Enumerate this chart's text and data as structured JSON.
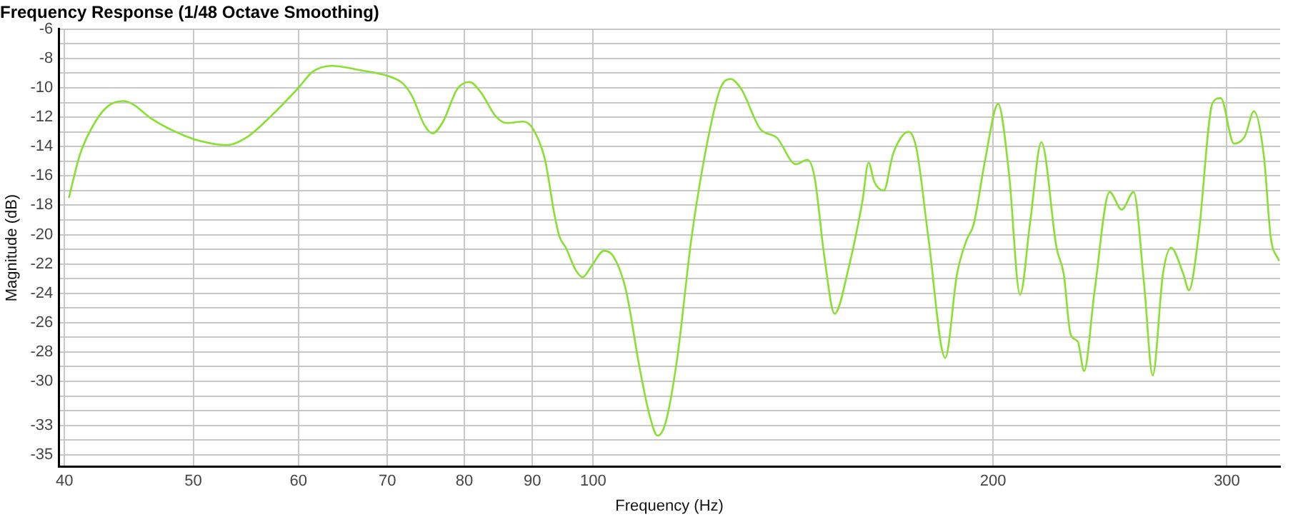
{
  "chart_data": {
    "type": "line",
    "title": "Frequency Response (1/48 Octave Smoothing)",
    "xlabel": "Frequency (Hz)",
    "ylabel": "Magnitude (dB)",
    "log": "x",
    "grid": true,
    "marker": "none",
    "line_style": "solid",
    "legend": false,
    "xlim": [
      39.6,
      329
    ],
    "xticks": [
      40,
      50,
      60,
      70,
      80,
      90,
      100,
      200,
      300
    ],
    "ylim": [
      -35.8,
      -6
    ],
    "yticks": [
      -6,
      {
        "value": -7,
        "label": null
      },
      -8,
      {
        "value": -9,
        "label": null
      },
      -10,
      {
        "value": -11,
        "label": null
      },
      -12,
      {
        "value": -13,
        "label": null
      },
      -14,
      {
        "value": -15,
        "label": null
      },
      -16,
      {
        "value": -17,
        "label": null
      },
      -18,
      {
        "value": -19,
        "label": null
      },
      -20,
      {
        "value": -21,
        "label": null
      },
      -22,
      {
        "value": -23,
        "label": null
      },
      -24,
      {
        "value": -25,
        "label": null
      },
      -26,
      {
        "value": -27,
        "label": null
      },
      -28,
      {
        "value": -29,
        "label": null
      },
      -30,
      {
        "value": -31,
        "label": null
      },
      {
        "value": -32,
        "label": null
      },
      -33,
      {
        "value": -34,
        "label": null
      },
      -35
    ],
    "series": [
      {
        "color": "#88e030",
        "x": [
          40.3,
          41.1,
          42.2,
          43.2,
          44.3,
          45.0,
          46.5,
          48.5,
          50.5,
          53.0,
          54.8,
          57.1,
          60.0,
          61.5,
          63.6,
          66.8,
          70.1,
          71.9,
          73.1,
          74.6,
          75.7,
          77.1,
          79.0,
          80.7,
          82.3,
          84.4,
          86.1,
          88.6,
          90.1,
          92.0,
          93.5,
          94.3,
          95.4,
          97.0,
          98.2,
          99.8,
          101.9,
          103.6,
          105.8,
          108.4,
          110.2,
          111.8,
          113.4,
          115.7,
          118.6,
          121.6,
          124.6,
          126.9,
          129.3,
          133.6,
          137.5,
          142.1,
          145.0,
          146.8,
          149.3,
          152.0,
          155.6,
          159.5,
          161.2,
          162.8,
          165.5,
          168.2,
          172.8,
          175.2,
          178.8,
          184.1,
          187.9,
          191.0,
          193.4,
          197.3,
          201.8,
          205.6,
          209.6,
          213.4,
          217.5,
          223.3,
          226.1,
          228.8,
          231.7,
          234.2,
          238.4,
          244.8,
          250.0,
          255.2,
          259.9,
          263.8,
          268.5,
          272.3,
          278.2,
          280.9,
          285.5,
          292.7,
          296.8,
          303.7,
          309.5,
          314.4,
          319.9,
          323.6,
          328.4
        ],
        "values": [
          -17.5,
          -14.5,
          -12.3,
          -11.2,
          -10.9,
          -11.1,
          -12.1,
          -13.0,
          -13.6,
          -13.9,
          -13.4,
          -12.0,
          -10.0,
          -8.9,
          -8.5,
          -8.8,
          -9.2,
          -9.7,
          -10.6,
          -12.5,
          -13.1,
          -12.3,
          -10.1,
          -9.6,
          -10.3,
          -11.9,
          -12.4,
          -12.3,
          -12.8,
          -14.9,
          -18.6,
          -20.1,
          -20.9,
          -22.4,
          -22.9,
          -22.1,
          -21.1,
          -21.5,
          -23.7,
          -29.1,
          -32.2,
          -33.7,
          -32.8,
          -28.4,
          -20.2,
          -14.2,
          -10.1,
          -9.4,
          -10.1,
          -12.8,
          -13.4,
          -15.2,
          -14.9,
          -16.1,
          -21.5,
          -25.4,
          -22.4,
          -17.7,
          -15.1,
          -16.4,
          -17.0,
          -14.5,
          -13.0,
          -14.2,
          -20.2,
          -28.4,
          -22.7,
          -20.4,
          -19.3,
          -14.9,
          -11.1,
          -15.8,
          -24.1,
          -19.0,
          -13.7,
          -20.9,
          -22.7,
          -26.8,
          -27.3,
          -29.3,
          -24.0,
          -17.1,
          -18.3,
          -17.1,
          -23.4,
          -29.6,
          -22.7,
          -20.9,
          -22.7,
          -23.8,
          -20.2,
          -11.0,
          -10.7,
          -13.8,
          -13.3,
          -11.6,
          -14.7,
          -20.1,
          -21.8
        ]
      }
    ]
  }
}
